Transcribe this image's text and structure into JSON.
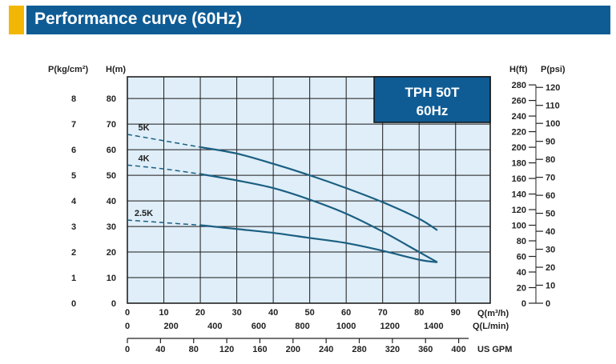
{
  "header": {
    "title": "Performance curve (60Hz)",
    "accent_color": "#f2b705",
    "bar_color": "#0f5c95"
  },
  "chart_data": {
    "type": "line",
    "model_box": {
      "line1": "TPH 50T",
      "line2": "60Hz"
    },
    "plot_background": "#dfeef8",
    "grid": true,
    "curve_color": "#1b5f82",
    "x_axes": [
      {
        "unit": "Q(m³/h)",
        "ticks": [
          "0",
          "10",
          "20",
          "30",
          "40",
          "50",
          "60",
          "70",
          "80",
          "90"
        ]
      },
      {
        "unit": "Q(L/min)",
        "ticks": [
          "0",
          "200",
          "400",
          "600",
          "800",
          "1000",
          "1200",
          "1400"
        ]
      },
      {
        "unit": "US GPM",
        "ticks": [
          "0",
          "40",
          "80",
          "120",
          "160",
          "200",
          "240",
          "280",
          "320",
          "360",
          "400"
        ]
      }
    ],
    "y_axes": {
      "left_outer": {
        "unit": "P(kg/cm²)",
        "ticks": [
          "0",
          "1",
          "2",
          "3",
          "4",
          "5",
          "6",
          "7",
          "8"
        ]
      },
      "left_main": {
        "unit": "H(m)",
        "ticks": [
          "0",
          "10",
          "20",
          "30",
          "40",
          "50",
          "60",
          "70",
          "80"
        ]
      },
      "right_inner": {
        "unit": "H(ft)",
        "ticks": [
          "0",
          "20",
          "40",
          "60",
          "80",
          "100",
          "120",
          "140",
          "160",
          "180",
          "200",
          "220",
          "240",
          "260",
          "280"
        ]
      },
      "right_outer": {
        "unit": "P(psi)",
        "ticks": [
          "0",
          "10",
          "20",
          "30",
          "40",
          "50",
          "60",
          "70",
          "80",
          "90",
          "100",
          "110",
          "120"
        ]
      }
    },
    "xlim": [
      0,
      99.5
    ],
    "ylim": [
      0,
      88.5
    ],
    "series": [
      {
        "name": "5K",
        "dashed_until": 20,
        "x": [
          0,
          10,
          20,
          30,
          40,
          50,
          60,
          70,
          80,
          85
        ],
        "y": [
          66,
          63.5,
          61,
          58.5,
          54.5,
          50,
          45,
          39.5,
          33,
          28.5
        ]
      },
      {
        "name": "4K",
        "dashed_until": 20,
        "x": [
          0,
          10,
          20,
          30,
          40,
          50,
          60,
          70,
          80,
          85
        ],
        "y": [
          54,
          52.5,
          50.5,
          48,
          45,
          40.5,
          35,
          28,
          20,
          16
        ]
      },
      {
        "name": "2.5K",
        "dashed_until": 20,
        "x": [
          0,
          10,
          20,
          30,
          40,
          50,
          60,
          70,
          80,
          85
        ],
        "y": [
          32.5,
          31.5,
          30.5,
          29,
          27.5,
          25.5,
          23.5,
          20.5,
          17,
          16
        ]
      }
    ]
  }
}
